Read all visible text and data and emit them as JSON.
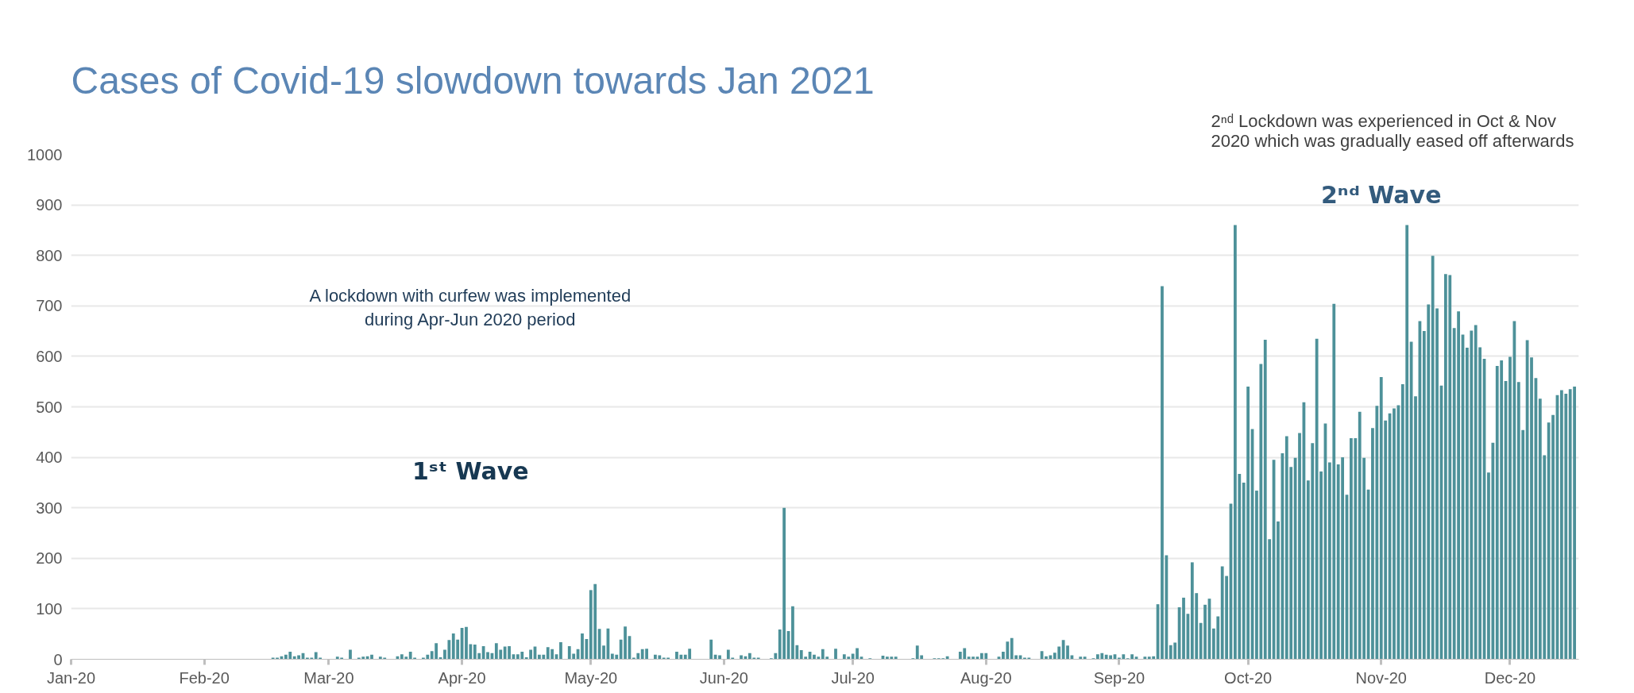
{
  "chart_data": {
    "type": "bar",
    "title": "Cases of Covid-19 slowdown towards Jan 2021",
    "annotations": [
      "A lockdown with curfew was implemented\nduring Apr-Jun 2020 period",
      "1ˢᵗ Wave",
      "2ⁿᵈ Wave",
      "2ⁿᵈ Lockdown was experienced in Oct & Nov\n2020 which was  gradually eased off afterwards"
    ],
    "color": "#4d9199",
    "x": [
      "2020-02-17",
      "2020-02-18",
      "2020-02-19",
      "2020-02-20",
      "2020-02-21",
      "2020-02-22",
      "2020-02-23",
      "2020-02-24",
      "2020-02-25",
      "2020-02-26",
      "2020-02-27",
      "2020-02-28",
      "2020-03-01",
      "2020-03-03",
      "2020-03-04",
      "2020-03-05",
      "2020-03-06",
      "2020-03-08",
      "2020-03-09",
      "2020-03-10",
      "2020-03-11",
      "2020-03-13",
      "2020-03-14",
      "2020-03-17",
      "2020-03-18",
      "2020-03-19",
      "2020-03-20",
      "2020-03-21",
      "2020-03-23",
      "2020-03-24",
      "2020-03-25",
      "2020-03-26",
      "2020-03-27",
      "2020-03-28",
      "2020-03-29",
      "2020-03-30",
      "2020-03-31",
      "2020-04-01",
      "2020-04-02",
      "2020-04-03",
      "2020-04-04",
      "2020-04-05",
      "2020-04-06",
      "2020-04-07",
      "2020-04-08",
      "2020-04-09",
      "2020-04-10",
      "2020-04-11",
      "2020-04-12",
      "2020-04-13",
      "2020-04-14",
      "2020-04-15",
      "2020-04-16",
      "2020-04-17",
      "2020-04-18",
      "2020-04-19",
      "2020-04-20",
      "2020-04-21",
      "2020-04-22",
      "2020-04-23",
      "2020-04-24",
      "2020-04-26",
      "2020-04-27",
      "2020-04-28",
      "2020-04-29",
      "2020-04-30",
      "2020-05-01",
      "2020-05-02",
      "2020-05-03",
      "2020-05-04",
      "2020-05-05",
      "2020-05-06",
      "2020-05-07",
      "2020-05-08",
      "2020-05-09",
      "2020-05-10",
      "2020-05-11",
      "2020-05-12",
      "2020-05-13",
      "2020-05-14",
      "2020-05-16",
      "2020-05-17",
      "2020-05-18",
      "2020-05-19",
      "2020-05-20",
      "2020-05-21",
      "2020-05-22",
      "2020-05-23",
      "2020-05-24",
      "2020-05-25",
      "2020-05-29",
      "2020-05-30",
      "2020-05-31",
      "2020-06-01",
      "2020-06-02",
      "2020-06-03",
      "2020-06-05",
      "2020-06-06",
      "2020-06-07",
      "2020-06-08",
      "2020-06-09",
      "2020-06-12",
      "2020-06-13",
      "2020-06-14",
      "2020-06-15",
      "2020-06-16",
      "2020-06-17",
      "2020-06-18",
      "2020-06-19",
      "2020-06-20",
      "2020-06-21",
      "2020-06-22",
      "2020-06-23",
      "2020-06-24",
      "2020-06-25",
      "2020-06-27",
      "2020-06-29",
      "2020-06-30",
      "2020-07-01",
      "2020-07-02",
      "2020-07-03",
      "2020-07-05",
      "2020-07-08",
      "2020-07-09",
      "2020-07-10",
      "2020-07-11",
      "2020-07-15",
      "2020-07-16",
      "2020-07-17",
      "2020-07-20",
      "2020-07-21",
      "2020-07-22",
      "2020-07-23",
      "2020-07-26",
      "2020-07-27",
      "2020-07-28",
      "2020-07-29",
      "2020-07-30",
      "2020-07-31",
      "2020-08-01",
      "2020-08-04",
      "2020-08-05",
      "2020-08-06",
      "2020-08-07",
      "2020-08-08",
      "2020-08-09",
      "2020-08-10",
      "2020-08-11",
      "2020-08-14",
      "2020-08-15",
      "2020-08-16",
      "2020-08-17",
      "2020-08-18",
      "2020-08-19",
      "2020-08-20",
      "2020-08-21",
      "2020-08-23",
      "2020-08-24",
      "2020-08-26",
      "2020-08-27",
      "2020-08-28",
      "2020-08-29",
      "2020-08-30",
      "2020-08-31",
      "2020-09-01",
      "2020-09-02",
      "2020-09-03",
      "2020-09-04",
      "2020-09-05",
      "2020-09-07",
      "2020-09-08",
      "2020-09-09",
      "2020-09-10",
      "2020-09-11",
      "2020-09-12",
      "2020-09-13",
      "2020-09-14",
      "2020-09-15",
      "2020-09-16",
      "2020-09-17",
      "2020-09-18",
      "2020-09-19",
      "2020-09-20",
      "2020-09-21",
      "2020-09-22",
      "2020-09-23",
      "2020-09-24",
      "2020-09-25",
      "2020-09-26",
      "2020-09-27",
      "2020-09-28",
      "2020-09-29",
      "2020-09-30",
      "2020-10-01",
      "2020-10-02",
      "2020-10-03",
      "2020-10-04",
      "2020-10-05",
      "2020-10-06",
      "2020-10-07",
      "2020-10-08",
      "2020-10-09",
      "2020-10-10",
      "2020-10-11",
      "2020-10-12",
      "2020-10-13",
      "2020-10-14",
      "2020-10-15",
      "2020-10-16",
      "2020-10-17",
      "2020-10-18",
      "2020-10-19",
      "2020-10-20",
      "2020-10-21",
      "2020-10-22",
      "2020-10-23",
      "2020-10-24",
      "2020-10-25",
      "2020-10-26",
      "2020-10-27",
      "2020-10-28",
      "2020-10-29",
      "2020-10-30",
      "2020-10-31",
      "2020-11-01",
      "2020-11-02",
      "2020-11-03",
      "2020-11-04",
      "2020-11-05",
      "2020-11-06",
      "2020-11-07",
      "2020-11-08",
      "2020-11-09",
      "2020-11-10",
      "2020-11-11",
      "2020-11-12",
      "2020-11-13",
      "2020-11-14",
      "2020-11-15",
      "2020-11-16",
      "2020-11-17",
      "2020-11-18",
      "2020-11-19",
      "2020-11-20",
      "2020-11-21",
      "2020-11-22",
      "2020-11-23",
      "2020-11-24",
      "2020-11-25",
      "2020-11-26",
      "2020-11-27",
      "2020-11-28",
      "2020-11-29",
      "2020-11-30",
      "2020-12-01",
      "2020-12-02",
      "2020-12-03",
      "2020-12-04",
      "2020-12-05",
      "2020-12-06",
      "2020-12-07",
      "2020-12-08",
      "2020-12-09",
      "2020-12-10",
      "2020-12-11",
      "2020-12-12",
      "2020-12-13",
      "2020-12-14",
      "2020-12-15",
      "2020-12-16"
    ],
    "values": [
      3,
      3,
      6,
      9,
      15,
      6,
      8,
      12,
      3,
      3,
      14,
      3,
      null,
      5,
      3,
      null,
      19,
      3,
      5,
      6,
      9,
      5,
      3,
      6,
      10,
      5,
      15,
      3,
      3,
      9,
      16,
      32,
      4,
      19,
      38,
      51,
      39,
      62,
      64,
      30,
      29,
      12,
      26,
      14,
      12,
      32,
      19,
      25,
      26,
      10,
      10,
      15,
      4,
      19,
      25,
      9,
      9,
      24,
      20,
      10,
      34,
      26,
      11,
      20,
      51,
      40,
      137,
      149,
      60,
      27,
      61,
      11,
      9,
      39,
      65,
      46,
      3,
      12,
      20,
      21,
      9,
      8,
      3,
      3,
      null,
      15,
      9,
      9,
      21,
      null,
      39,
      9,
      8,
      null,
      19,
      3,
      8,
      6,
      12,
      3,
      3,
      2,
      12,
      59,
      300,
      56,
      105,
      28,
      18,
      5,
      15,
      9,
      5,
      20,
      5,
      21,
      10,
      5,
      11,
      22,
      5,
      2,
      7,
      5,
      5,
      5,
      2,
      27,
      8,
      2,
      2,
      2,
      6,
      15,
      22,
      5,
      5,
      5,
      12,
      12,
      5,
      15,
      35,
      42,
      8,
      8,
      3,
      3,
      16,
      6,
      8,
      13,
      25,
      38,
      27,
      8,
      5,
      5,
      2,
      10,
      12,
      9,
      8,
      10,
      3,
      10,
      2,
      10,
      5,
      5,
      5,
      6,
      109,
      739,
      206,
      28,
      33,
      103,
      122,
      90,
      192,
      131,
      72,
      108,
      120,
      61,
      85,
      184,
      165,
      308,
      860,
      367,
      350,
      540,
      456,
      334,
      585,
      633,
      238,
      395,
      273,
      408,
      442,
      381,
      399,
      448,
      509,
      354,
      428,
      635,
      372,
      467,
      390,
      704,
      386,
      400,
      326,
      438,
      438,
      490,
      399,
      336,
      458,
      502,
      559,
      473,
      487,
      497,
      503,
      545,
      860,
      629,
      521,
      670,
      650,
      703,
      799,
      695,
      542,
      763,
      761,
      656,
      689,
      643,
      617,
      651,
      662,
      618,
      595,
      370,
      429,
      581,
      592,
      551,
      599,
      670,
      549,
      454,
      632,
      598,
      557,
      516,
      404,
      469,
      484,
      523,
      533,
      526,
      535,
      540
    ],
    "xlim": [
      "2020-01-01",
      "2020-12-17"
    ],
    "xticks": [
      {
        "value": "2020-01-01",
        "label": "Jan-20"
      },
      {
        "value": "2020-02-01",
        "label": "Feb-20"
      },
      {
        "value": "2020-03-01",
        "label": "Mar-20"
      },
      {
        "value": "2020-04-01",
        "label": "Apr-20"
      },
      {
        "value": "2020-05-01",
        "label": "May-20"
      },
      {
        "value": "2020-06-01",
        "label": "Jun-20"
      },
      {
        "value": "2020-07-01",
        "label": "Jul-20"
      },
      {
        "value": "2020-08-01",
        "label": "Aug-20"
      },
      {
        "value": "2020-09-01",
        "label": "Sep-20"
      },
      {
        "value": "2020-10-01",
        "label": "Oct-20"
      },
      {
        "value": "2020-11-01",
        "label": "Nov-20"
      },
      {
        "value": "2020-12-01",
        "label": "Dec-20"
      }
    ],
    "ylim": [
      0,
      1000
    ],
    "yticks": [
      0,
      100,
      200,
      300,
      400,
      500,
      600,
      700,
      800,
      900,
      1000
    ],
    "grid": "y"
  }
}
